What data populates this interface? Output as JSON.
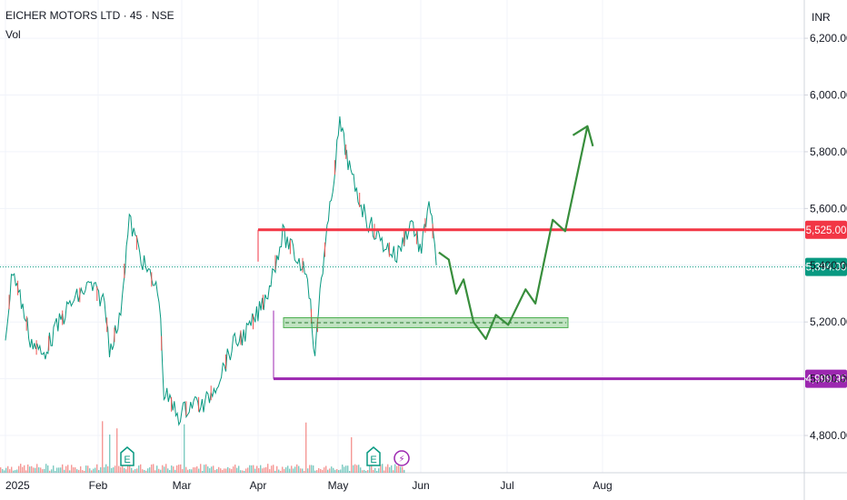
{
  "header": {
    "title": "EICHER MOTORS LTD · 45 · NSE",
    "volume_label": "Vol",
    "currency": "INR"
  },
  "chart_data": {
    "type": "line",
    "ylim": [
      4720,
      6290
    ],
    "y_ticks": [
      "4,800.00",
      "5,000.00",
      "5,200.00",
      "5,400.00",
      "5,600.00",
      "5,800.00",
      "6,000.00",
      "6,200.00"
    ],
    "y_tick_values": [
      4800,
      5000,
      5200,
      5400,
      5600,
      5800,
      6000,
      6200
    ],
    "x_ticks": [
      "2025",
      "Feb",
      "Mar",
      "Apr",
      "May",
      "Jun",
      "Jul",
      "Aug"
    ],
    "price_series": {
      "color": "#089981",
      "points": [
        [
          0.0,
          5150
        ],
        [
          0.15,
          5390
        ],
        [
          0.35,
          5250
        ],
        [
          0.5,
          5140
        ],
        [
          0.75,
          5080
        ],
        [
          1.0,
          5170
        ],
        [
          1.3,
          5260
        ],
        [
          1.7,
          5330
        ],
        [
          2.0,
          5270
        ],
        [
          2.1,
          5110
        ],
        [
          2.3,
          5200
        ],
        [
          2.5,
          5560
        ],
        [
          2.8,
          5400
        ],
        [
          3.1,
          5300
        ],
        [
          3.2,
          4950
        ],
        [
          3.5,
          4870
        ],
        [
          3.8,
          4920
        ],
        [
          4.0,
          4900
        ],
        [
          4.3,
          5000
        ],
        [
          4.6,
          5120
        ],
        [
          4.9,
          5170
        ],
        [
          5.1,
          5230
        ],
        [
          5.3,
          5310
        ],
        [
          5.6,
          5510
        ],
        [
          5.9,
          5420
        ],
        [
          6.1,
          5380
        ],
        [
          6.25,
          5060
        ],
        [
          6.35,
          5320
        ],
        [
          6.55,
          5590
        ],
        [
          6.75,
          5900
        ],
        [
          7.0,
          5700
        ],
        [
          7.3,
          5560
        ],
        [
          7.6,
          5480
        ],
        [
          7.9,
          5430
        ],
        [
          8.2,
          5560
        ],
        [
          8.4,
          5440
        ],
        [
          8.55,
          5640
        ],
        [
          8.7,
          5400
        ]
      ]
    },
    "projection_path": {
      "color": "#388e3c",
      "points": [
        [
          8.75,
          5445
        ],
        [
          8.95,
          5420
        ],
        [
          9.1,
          5300
        ],
        [
          9.25,
          5350
        ],
        [
          9.45,
          5200
        ],
        [
          9.7,
          5140
        ],
        [
          9.9,
          5225
        ],
        [
          10.15,
          5190
        ],
        [
          10.5,
          5315
        ],
        [
          10.7,
          5265
        ],
        [
          11.05,
          5560
        ],
        [
          11.3,
          5520
        ],
        [
          11.75,
          5890
        ],
        [
          12.0,
          5830
        ]
      ]
    },
    "levels": [
      {
        "label": "5,525.00",
        "value": 5525,
        "color": "#f23645"
      },
      {
        "label": "5,394.00",
        "value": 5394,
        "color": "#089981"
      },
      {
        "label": "4,999.95",
        "value": 4999.95,
        "color": "#9c27b0"
      }
    ],
    "support_zone": {
      "low": 5180,
      "high": 5215,
      "color": "#4caf50"
    },
    "events": [
      {
        "type": "earnings",
        "label": "E"
      },
      {
        "type": "earnings",
        "label": "E"
      },
      {
        "type": "dividend",
        "label": "⚡"
      }
    ],
    "grid": true
  }
}
